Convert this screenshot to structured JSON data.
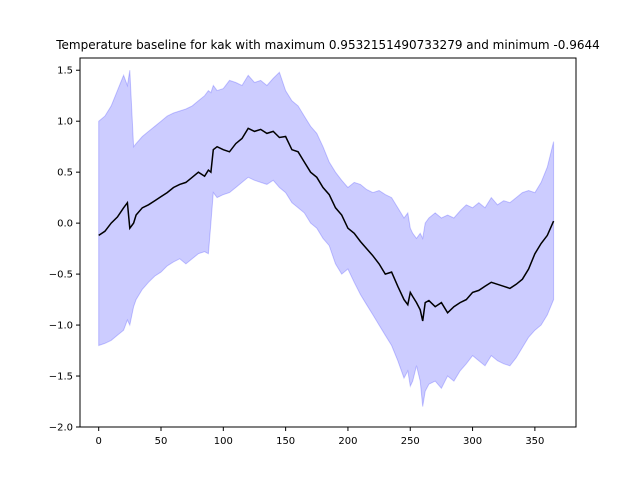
{
  "chart_data": {
    "type": "line",
    "title": "Temperature baseline for kak with maximum 0.9532151490733279 and minimum -0.9644",
    "xlabel": "",
    "ylabel": "",
    "xlim": [
      -15,
      383
    ],
    "ylim": [
      -2.0,
      1.62
    ],
    "x_ticks": [
      0,
      50,
      100,
      150,
      200,
      250,
      300,
      350
    ],
    "y_ticks": [
      -2.0,
      -1.5,
      -1.0,
      -0.5,
      0.0,
      0.5,
      1.0,
      1.5
    ],
    "grid": false,
    "series": [
      {
        "kind": "line",
        "color": "#000000",
        "x": [
          0,
          5,
          10,
          15,
          20,
          23,
          25,
          28,
          30,
          35,
          40,
          45,
          50,
          55,
          60,
          65,
          70,
          75,
          80,
          85,
          88,
          90,
          92,
          95,
          100,
          105,
          110,
          115,
          120,
          125,
          130,
          135,
          140,
          145,
          150,
          155,
          160,
          165,
          170,
          175,
          180,
          185,
          190,
          195,
          200,
          205,
          210,
          215,
          220,
          225,
          230,
          235,
          240,
          245,
          248,
          250,
          252,
          255,
          258,
          260,
          262,
          265,
          270,
          275,
          280,
          285,
          290,
          295,
          300,
          305,
          310,
          315,
          320,
          325,
          330,
          335,
          340,
          345,
          350,
          355,
          360,
          365
        ],
        "y": [
          -0.12,
          -0.08,
          0.0,
          0.06,
          0.15,
          0.2,
          -0.05,
          0.0,
          0.08,
          0.15,
          0.18,
          0.22,
          0.26,
          0.3,
          0.35,
          0.38,
          0.4,
          0.45,
          0.5,
          0.46,
          0.52,
          0.5,
          0.72,
          0.75,
          0.72,
          0.7,
          0.78,
          0.83,
          0.93,
          0.9,
          0.92,
          0.88,
          0.9,
          0.84,
          0.85,
          0.72,
          0.7,
          0.6,
          0.5,
          0.45,
          0.35,
          0.28,
          0.15,
          0.08,
          -0.05,
          -0.1,
          -0.18,
          -0.25,
          -0.32,
          -0.4,
          -0.5,
          -0.48,
          -0.62,
          -0.75,
          -0.8,
          -0.68,
          -0.72,
          -0.78,
          -0.85,
          -0.96,
          -0.78,
          -0.76,
          -0.82,
          -0.78,
          -0.88,
          -0.82,
          -0.78,
          -0.75,
          -0.68,
          -0.66,
          -0.62,
          -0.58,
          -0.6,
          -0.62,
          -0.64,
          -0.6,
          -0.55,
          -0.45,
          -0.3,
          -0.2,
          -0.12,
          0.02
        ]
      },
      {
        "kind": "band",
        "color": "#0000ff",
        "opacity": 0.2,
        "x": [
          0,
          5,
          10,
          15,
          20,
          23,
          25,
          28,
          30,
          35,
          40,
          45,
          50,
          55,
          60,
          65,
          70,
          75,
          80,
          85,
          88,
          90,
          92,
          95,
          100,
          105,
          110,
          115,
          120,
          125,
          130,
          135,
          140,
          145,
          150,
          155,
          160,
          165,
          170,
          175,
          180,
          185,
          190,
          195,
          200,
          205,
          210,
          215,
          220,
          225,
          230,
          235,
          240,
          245,
          248,
          250,
          252,
          255,
          258,
          260,
          262,
          265,
          270,
          275,
          280,
          285,
          290,
          295,
          300,
          305,
          310,
          315,
          320,
          325,
          330,
          335,
          340,
          345,
          350,
          355,
          360,
          365
        ],
        "upper": [
          1.0,
          1.05,
          1.15,
          1.3,
          1.45,
          1.35,
          1.5,
          0.75,
          0.78,
          0.85,
          0.9,
          0.95,
          1.0,
          1.05,
          1.08,
          1.1,
          1.12,
          1.15,
          1.2,
          1.25,
          1.3,
          1.28,
          1.35,
          1.3,
          1.32,
          1.4,
          1.38,
          1.35,
          1.45,
          1.38,
          1.4,
          1.35,
          1.42,
          1.48,
          1.3,
          1.2,
          1.15,
          1.05,
          0.95,
          0.88,
          0.75,
          0.6,
          0.5,
          0.42,
          0.35,
          0.4,
          0.38,
          0.33,
          0.3,
          0.32,
          0.28,
          0.25,
          0.15,
          0.05,
          0.1,
          -0.05,
          -0.1,
          -0.15,
          -0.1,
          -0.15,
          0.0,
          0.05,
          0.1,
          0.05,
          0.08,
          0.05,
          0.12,
          0.18,
          0.15,
          0.2,
          0.15,
          0.25,
          0.18,
          0.22,
          0.2,
          0.25,
          0.3,
          0.32,
          0.3,
          0.4,
          0.55,
          0.8
        ],
        "lower": [
          -1.2,
          -1.18,
          -1.15,
          -1.1,
          -1.05,
          -0.95,
          -1.0,
          -0.82,
          -0.75,
          -0.65,
          -0.58,
          -0.52,
          -0.48,
          -0.42,
          -0.38,
          -0.35,
          -0.4,
          -0.35,
          -0.3,
          -0.28,
          -0.3,
          0.0,
          0.3,
          0.25,
          0.28,
          0.3,
          0.35,
          0.4,
          0.45,
          0.42,
          0.4,
          0.38,
          0.42,
          0.35,
          0.3,
          0.2,
          0.15,
          0.1,
          0.0,
          -0.05,
          -0.15,
          -0.22,
          -0.4,
          -0.5,
          -0.45,
          -0.58,
          -0.7,
          -0.8,
          -0.9,
          -1.0,
          -1.1,
          -1.2,
          -1.35,
          -1.52,
          -1.45,
          -1.6,
          -1.55,
          -1.4,
          -1.55,
          -1.8,
          -1.65,
          -1.58,
          -1.55,
          -1.62,
          -1.5,
          -1.55,
          -1.45,
          -1.38,
          -1.3,
          -1.35,
          -1.4,
          -1.3,
          -1.35,
          -1.38,
          -1.4,
          -1.32,
          -1.22,
          -1.12,
          -1.05,
          -1.0,
          -0.9,
          -0.75
        ]
      }
    ]
  }
}
